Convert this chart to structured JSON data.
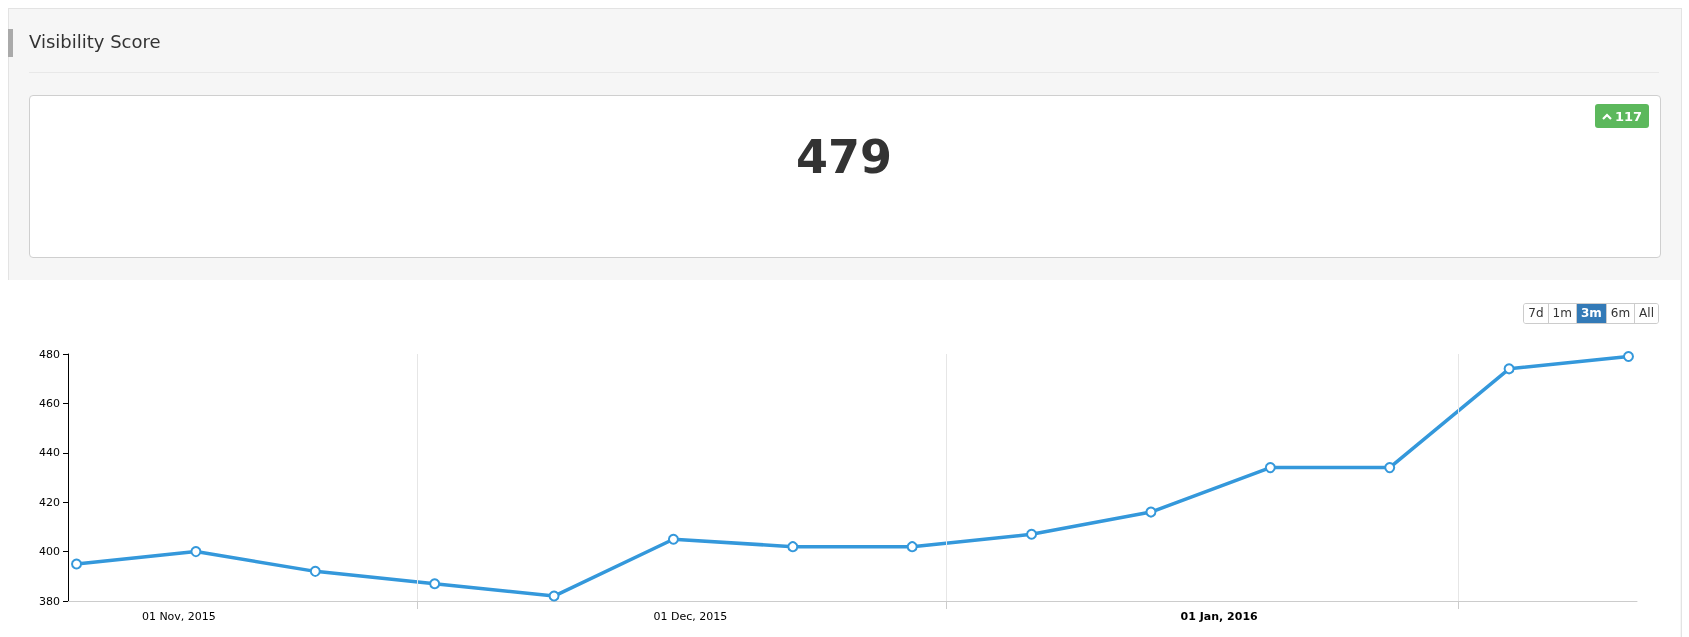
{
  "chart_data": {
    "type": "line",
    "title": "Visibility Score",
    "annotations": [
      "479",
      "117",
      "7d",
      "1m",
      "3m",
      "6m",
      "All"
    ],
    "x": [
      "2015-10-26",
      "2015-11-02",
      "2015-11-09",
      "2015-11-16",
      "2015-11-23",
      "2015-11-30",
      "2015-12-07",
      "2015-12-14",
      "2015-12-21",
      "2015-12-28",
      "2016-01-04",
      "2016-01-11",
      "2016-01-18",
      "2016-01-25"
    ],
    "series": [
      {
        "color": "#3498db",
        "values": [
          395,
          400,
          392,
          387,
          382,
          405,
          402,
          402,
          407,
          416,
          434,
          434,
          474,
          479
        ]
      }
    ],
    "xlim": [
      "2015-10-25T12:00",
      "2016-01-25T12:00"
    ],
    "xticks": [
      {
        "value": "2015-11-01",
        "label": "01 Nov, 2015"
      },
      {
        "value": "2015-11-15",
        "label": null
      },
      {
        "value": "2015-12-01",
        "label": "01 Dec, 2015"
      },
      {
        "value": "2015-12-16",
        "label": null
      },
      {
        "value": "2016-01-01",
        "label": "01 Jan, 2016"
      },
      {
        "value": "2016-01-15",
        "label": null
      }
    ],
    "ylim": [
      380,
      480
    ],
    "yticks": [
      380,
      400,
      420,
      440,
      460,
      480
    ],
    "grid": "x",
    "marker": "circle",
    "line_style": "solid"
  }
}
